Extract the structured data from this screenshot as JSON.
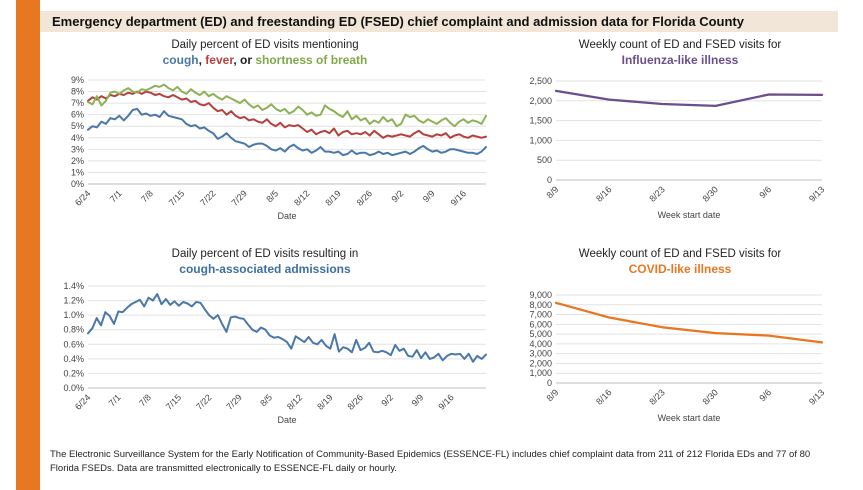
{
  "header": {
    "title": "Emergency department (ED) and freestanding ED (FSED) chief complaint and admission data for Florida County"
  },
  "panels": {
    "p1": {
      "title": "Daily percent of ED visits mentioning",
      "subtitle_parts": [
        {
          "text": "cough",
          "color": "#4A78A8"
        },
        {
          "text": ", ",
          "color": "#222222"
        },
        {
          "text": "fever",
          "color": "#B5403F"
        },
        {
          "text": ", or ",
          "color": "#222222"
        },
        {
          "text": "shortness of breath",
          "color": "#7FA84A"
        }
      ]
    },
    "p2": {
      "title": "Weekly count of ED and FSED visits for",
      "subtitle": "Influenza-like illness",
      "subtitle_color": "#6B4E8C"
    },
    "p3": {
      "title": "Daily percent of ED visits resulting in",
      "subtitle": "cough-associated admissions",
      "subtitle_color": "#3E6FA0"
    },
    "p4": {
      "title": "Weekly count of ED and FSED visits for",
      "subtitle": "COVID-like illness",
      "subtitle_color": "#E87722"
    }
  },
  "footer": {
    "text": "The Electronic Surveillance System for the Early Notification of Community-Based Epidemics (ESSENCE-FL) includes chief complaint data from 211 of 212 Florida EDs and 77 of 80 Florida FSEDs. Data are transmitted electronically to ESSENCE-FL daily or hourly."
  },
  "chart_data": [
    {
      "type": "line",
      "xlabel": "Date",
      "ylabel": "",
      "x_tick_labels": [
        "6/24",
        "7/1",
        "7/8",
        "7/15",
        "7/22",
        "7/29",
        "8/5",
        "8/12",
        "8/19",
        "8/26",
        "9/2",
        "9/9",
        "9/16"
      ],
      "y_tick_labels": [
        "0%",
        "1%",
        "2%",
        "3%",
        "4%",
        "5%",
        "6%",
        "7%",
        "8%",
        "9%"
      ],
      "ylim": [
        0,
        9
      ],
      "grid": true,
      "series": [
        {
          "name": "cough",
          "color": "#4A78A8",
          "values": [
            4.7,
            5.0,
            4.9,
            5.4,
            5.2,
            5.7,
            5.6,
            5.9,
            5.5,
            5.9,
            6.4,
            6.5,
            6.0,
            6.1,
            5.9,
            6.0,
            5.8,
            6.3,
            5.9,
            5.8,
            5.7,
            5.6,
            5.2,
            5.0,
            5.1,
            4.8,
            4.9,
            4.6,
            4.4,
            3.9,
            4.1,
            4.4,
            4.0,
            3.7,
            3.6,
            3.5,
            3.2,
            3.4,
            3.5,
            3.5,
            3.3,
            3.0,
            2.9,
            3.1,
            2.8,
            3.2,
            3.4,
            3.1,
            2.9,
            3.0,
            2.7,
            2.9,
            3.2,
            2.8,
            2.8,
            2.7,
            2.8,
            2.5,
            2.6,
            2.9,
            2.6,
            2.7,
            2.7,
            2.5,
            2.6,
            2.8,
            2.6,
            2.7,
            2.5,
            2.6,
            2.7,
            2.8,
            2.6,
            2.8,
            3.1,
            3.3,
            3.0,
            2.8,
            2.9,
            2.7,
            2.8,
            3.0,
            3.0,
            2.9,
            2.8,
            2.7,
            2.7,
            2.6,
            2.8,
            3.2
          ]
        },
        {
          "name": "fever",
          "color": "#B5403F",
          "values": [
            7.2,
            7.5,
            7.3,
            7.6,
            7.4,
            7.7,
            7.6,
            7.8,
            7.7,
            7.9,
            7.8,
            8.0,
            7.8,
            8.0,
            7.9,
            7.7,
            7.8,
            7.6,
            7.5,
            7.7,
            7.5,
            7.3,
            7.4,
            7.1,
            7.2,
            6.9,
            6.8,
            7.0,
            6.6,
            6.3,
            6.4,
            6.0,
            6.3,
            5.9,
            5.7,
            5.8,
            5.5,
            5.6,
            5.4,
            5.3,
            5.6,
            5.2,
            5.0,
            5.3,
            4.9,
            5.1,
            5.0,
            5.1,
            4.8,
            4.5,
            4.7,
            4.3,
            4.5,
            4.6,
            4.4,
            4.8,
            4.2,
            4.5,
            4.6,
            4.3,
            4.4,
            4.3,
            4.5,
            4.2,
            4.6,
            4.3,
            4.0,
            4.2,
            4.1,
            4.2,
            4.3,
            4.2,
            4.1,
            4.4,
            4.6,
            4.3,
            4.2,
            4.1,
            4.3,
            4.2,
            4.4,
            4.0,
            4.2,
            4.3,
            4.1,
            4.0,
            4.2,
            4.1,
            4.0,
            4.1
          ]
        },
        {
          "name": "shortness of breath",
          "color": "#8DB255",
          "values": [
            7.1,
            6.9,
            7.6,
            6.8,
            7.2,
            7.9,
            8.0,
            7.8,
            8.1,
            8.3,
            8.0,
            7.9,
            8.2,
            8.1,
            8.3,
            8.5,
            8.4,
            8.6,
            8.3,
            8.1,
            8.4,
            8.0,
            7.8,
            8.2,
            7.9,
            7.7,
            8.0,
            7.6,
            7.8,
            7.5,
            7.3,
            7.6,
            7.4,
            7.2,
            7.0,
            7.3,
            6.9,
            6.6,
            6.8,
            6.4,
            6.6,
            6.9,
            6.5,
            6.3,
            6.5,
            6.1,
            6.3,
            6.7,
            6.4,
            6.0,
            6.2,
            5.9,
            6.0,
            6.8,
            6.5,
            6.3,
            6.0,
            5.8,
            6.3,
            5.6,
            5.9,
            5.5,
            5.7,
            5.2,
            5.5,
            5.3,
            5.8,
            5.4,
            5.6,
            5.0,
            5.2,
            6.0,
            5.8,
            5.9,
            5.5,
            5.3,
            5.6,
            5.4,
            5.2,
            5.5,
            5.7,
            5.3,
            5.0,
            5.4,
            5.6,
            5.3,
            5.5,
            5.4,
            5.2,
            5.9
          ]
        }
      ]
    },
    {
      "type": "line",
      "xlabel": "Week start date",
      "ylabel": "",
      "categories": [
        "8/9",
        "8/16",
        "8/23",
        "8/30",
        "9/6",
        "9/13"
      ],
      "y_tick_labels": [
        "0",
        "500",
        "1,000",
        "1,500",
        "2,000",
        "2,500"
      ],
      "ylim": [
        0,
        2500
      ],
      "grid": true,
      "series": [
        {
          "color": "#6B4E8C",
          "values": [
            2250,
            2030,
            1920,
            1870,
            2160,
            2150
          ]
        }
      ]
    },
    {
      "type": "line",
      "xlabel": "Date",
      "ylabel": "",
      "x_tick_labels": [
        "6/24",
        "7/1",
        "7/8",
        "7/15",
        "7/22",
        "7/29",
        "8/5",
        "8/12",
        "8/19",
        "8/26",
        "9/2",
        "9/9",
        "9/16"
      ],
      "y_tick_labels": [
        "0.0%",
        "0.2%",
        "0.4%",
        "0.6%",
        "0.8%",
        "1.0%",
        "1.2%",
        "1.4%"
      ],
      "ylim": [
        0,
        1.4
      ],
      "grid": true,
      "series": [
        {
          "color": "#4A78A8",
          "values": [
            0.75,
            0.82,
            0.96,
            0.86,
            1.04,
            0.99,
            0.88,
            1.05,
            1.04,
            1.1,
            1.15,
            1.18,
            1.21,
            1.12,
            1.24,
            1.2,
            1.29,
            1.15,
            1.22,
            1.14,
            1.19,
            1.13,
            1.18,
            1.16,
            1.12,
            1.18,
            1.17,
            1.08,
            1.0,
            0.95,
            1.0,
            0.88,
            0.77,
            0.97,
            0.98,
            0.96,
            0.95,
            0.87,
            0.8,
            0.77,
            0.83,
            0.8,
            0.72,
            0.69,
            0.7,
            0.67,
            0.63,
            0.54,
            0.71,
            0.67,
            0.63,
            0.7,
            0.62,
            0.6,
            0.66,
            0.58,
            0.54,
            0.74,
            0.5,
            0.56,
            0.54,
            0.49,
            0.66,
            0.52,
            0.55,
            0.62,
            0.5,
            0.49,
            0.51,
            0.49,
            0.45,
            0.59,
            0.51,
            0.54,
            0.44,
            0.43,
            0.52,
            0.41,
            0.49,
            0.4,
            0.42,
            0.47,
            0.38,
            0.44,
            0.47,
            0.46,
            0.47,
            0.4,
            0.47,
            0.36,
            0.44,
            0.4,
            0.46
          ]
        }
      ]
    },
    {
      "type": "line",
      "xlabel": "Week start date",
      "ylabel": "",
      "categories": [
        "8/9",
        "8/16",
        "8/23",
        "8/30",
        "9/6",
        "9/13"
      ],
      "y_tick_labels": [
        "0",
        "1,000",
        "2,000",
        "3,000",
        "4,000",
        "5,000",
        "6,000",
        "7,000",
        "8,000",
        "9,000"
      ],
      "ylim": [
        0,
        9000
      ],
      "grid": true,
      "series": [
        {
          "color": "#E87722",
          "values": [
            8200,
            6700,
            5700,
            5100,
            4850,
            4150
          ]
        }
      ]
    }
  ]
}
